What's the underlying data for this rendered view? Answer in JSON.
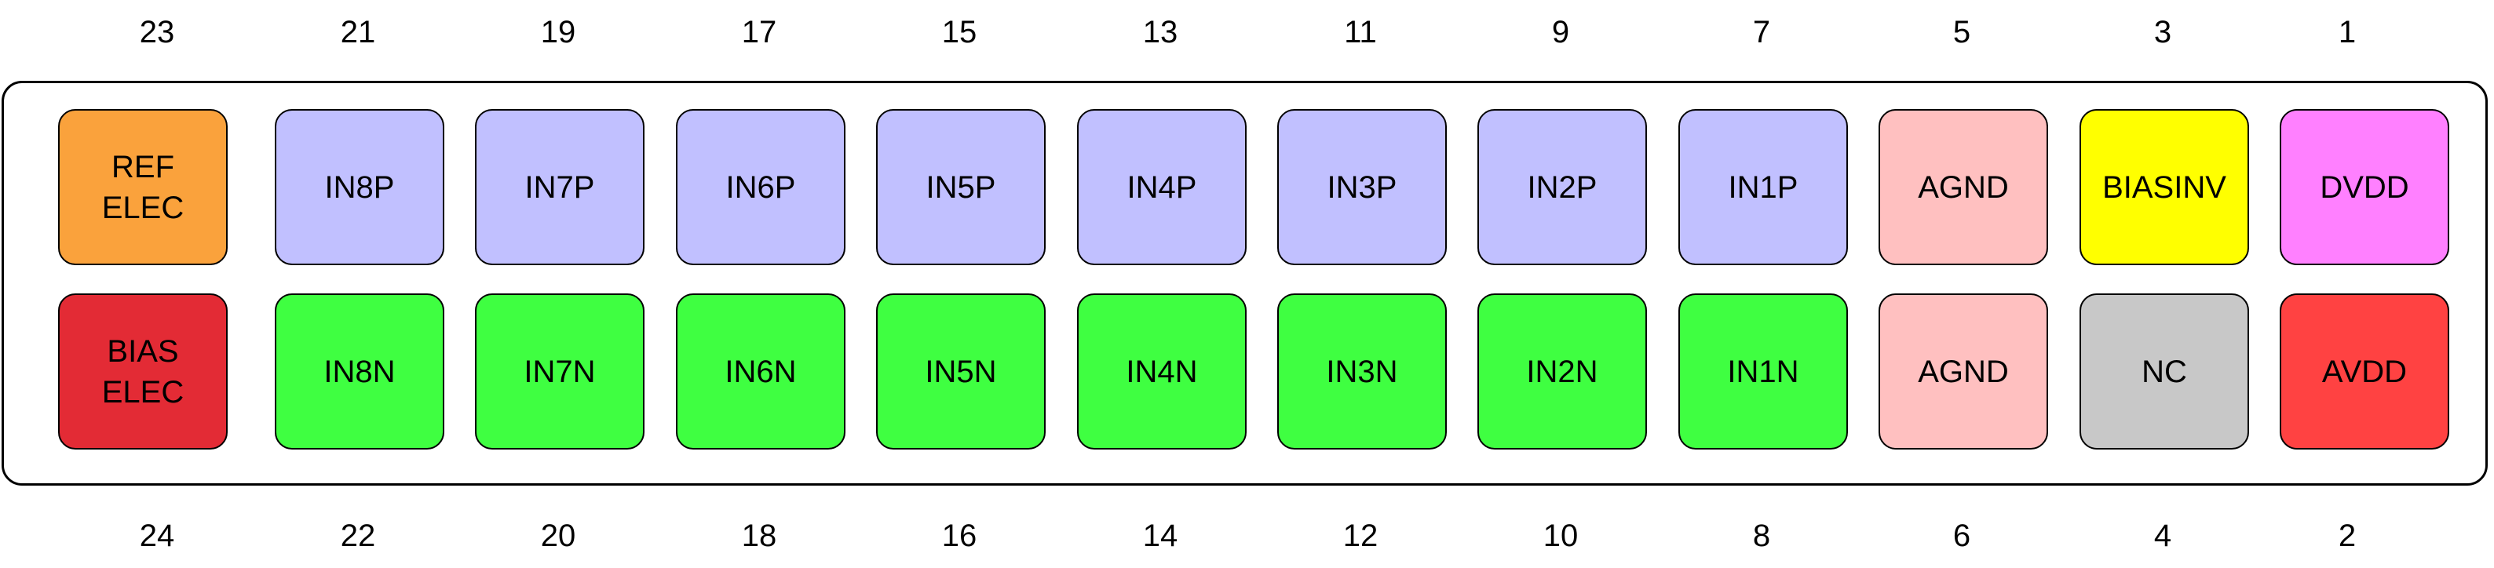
{
  "top_pin_numbers": [
    "23",
    "21",
    "19",
    "17",
    "15",
    "13",
    "11",
    "9",
    "7",
    "5",
    "3",
    "1"
  ],
  "bottom_pin_numbers": [
    "24",
    "22",
    "20",
    "18",
    "16",
    "14",
    "12",
    "10",
    "8",
    "6",
    "4",
    "2"
  ],
  "top_row": [
    {
      "label": "REF\nELEC",
      "color": "#FAA23C"
    },
    {
      "label": "IN8P",
      "color": "#C1C0FF"
    },
    {
      "label": "IN7P",
      "color": "#C1C0FF"
    },
    {
      "label": "IN6P",
      "color": "#C1C0FF"
    },
    {
      "label": "IN5P",
      "color": "#C1C0FF"
    },
    {
      "label": "IN4P",
      "color": "#C1C0FF"
    },
    {
      "label": "IN3P",
      "color": "#C1C0FF"
    },
    {
      "label": "IN2P",
      "color": "#C1C0FF"
    },
    {
      "label": "IN1P",
      "color": "#C1C0FF"
    },
    {
      "label": "AGND",
      "color": "#FFC0C0"
    },
    {
      "label": "BIASINV",
      "color": "#FFFF00"
    },
    {
      "label": "DVDD",
      "color": "#FF80FF"
    }
  ],
  "bottom_row": [
    {
      "label": "BIAS\nELEC",
      "color": "#E32B35"
    },
    {
      "label": "IN8N",
      "color": "#3FFF41"
    },
    {
      "label": "IN7N",
      "color": "#3FFF41"
    },
    {
      "label": "IN6N",
      "color": "#3FFF41"
    },
    {
      "label": "IN5N",
      "color": "#3FFF41"
    },
    {
      "label": "IN4N",
      "color": "#3FFF41"
    },
    {
      "label": "IN3N",
      "color": "#3FFF41"
    },
    {
      "label": "IN2N",
      "color": "#3FFF41"
    },
    {
      "label": "IN1N",
      "color": "#3FFF41"
    },
    {
      "label": "AGND",
      "color": "#FFC0C0"
    },
    {
      "label": "NC",
      "color": "#C8C8C8"
    },
    {
      "label": "AVDD",
      "color": "#FF4242"
    }
  ]
}
